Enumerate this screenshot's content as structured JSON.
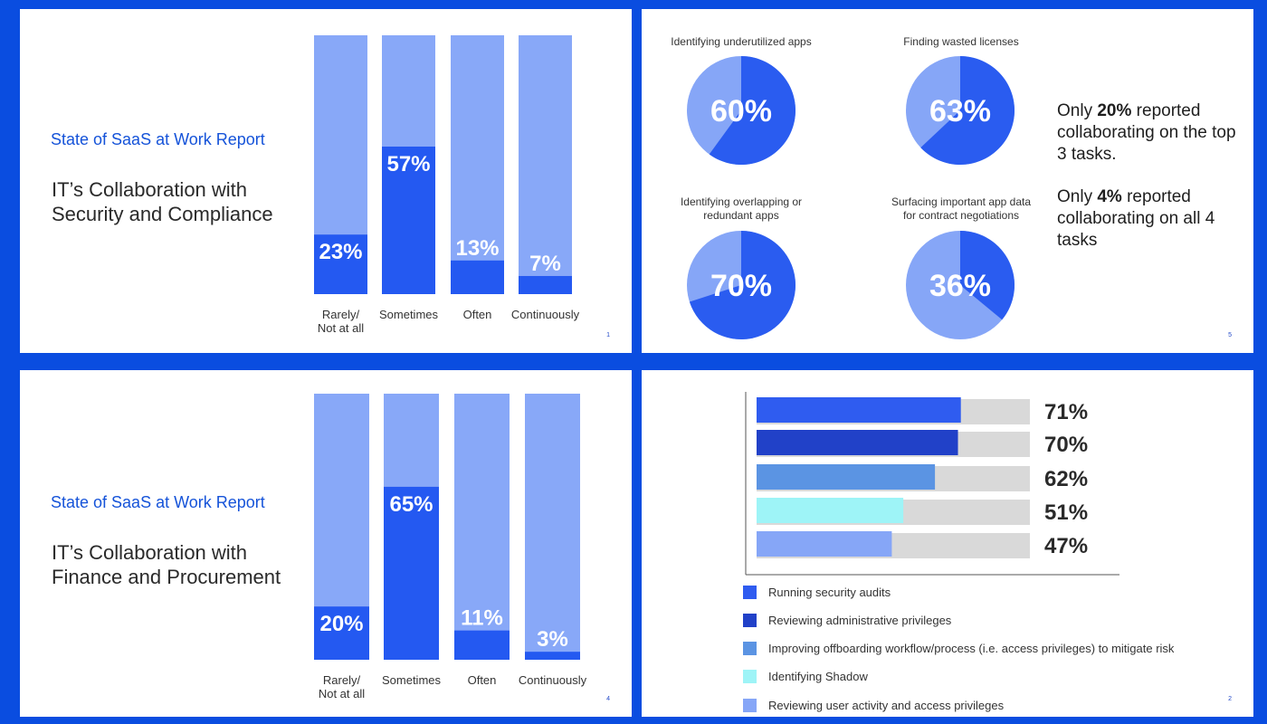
{
  "slides": {
    "security": {
      "subtitle": "State of SaaS at Work Report",
      "title_line1": "IT’s Collaboration with",
      "title_line2": "Security and Compliance",
      "page": "1"
    },
    "tasks": {
      "page": "5",
      "note1_pre": "Only ",
      "note1_bold": "20%",
      "note1_post": " reported collaborating on the top 3 tasks.",
      "note2_pre": "Only ",
      "note2_bold": "4%",
      "note2_post": " reported collaborating on all 4 tasks"
    },
    "finance": {
      "subtitle": "State of SaaS at Work Report",
      "title_line1": "IT’s Collaboration with",
      "title_line2": "Finance and Procurement",
      "page": "4"
    },
    "activities": {
      "page": "2"
    }
  },
  "colors": {
    "bar_dark": "#2459f1",
    "bar_light": "#88a8f8",
    "pie_dark": "#2a5cf0",
    "pie_light": "#86a6f7",
    "track": "#d9d9d9"
  },
  "chart_data": [
    {
      "id": "security",
      "type": "bar",
      "stacked_to": 100,
      "categories": [
        "Rarely/\nNot at all",
        "Sometimes",
        "Often",
        "Continuously"
      ],
      "values": [
        23,
        57,
        13,
        7
      ],
      "labels": [
        "23%",
        "57%",
        "13%",
        "7%"
      ],
      "ylim": [
        0,
        100
      ]
    },
    {
      "id": "tasks",
      "type": "pie",
      "pies": [
        {
          "title": "Identifying underutilized apps",
          "value": 60,
          "label": "60%"
        },
        {
          "title": "Finding wasted licenses",
          "value": 63,
          "label": "63%"
        },
        {
          "title": "Identifying overlapping or\nredundant apps",
          "value": 70,
          "label": "70%"
        },
        {
          "title": "Surfacing important app data\nfor contract negotiations",
          "value": 36,
          "label": "36%"
        }
      ]
    },
    {
      "id": "finance",
      "type": "bar",
      "stacked_to": 100,
      "categories": [
        "Rarely/\nNot at all",
        "Sometimes",
        "Often",
        "Continuously"
      ],
      "values": [
        20,
        65,
        11,
        3
      ],
      "labels": [
        "20%",
        "65%",
        "11%",
        "3%"
      ],
      "ylim": [
        0,
        100
      ]
    },
    {
      "id": "activities",
      "type": "bar",
      "orientation": "horizontal",
      "xlim": [
        0,
        100
      ],
      "series": [
        {
          "name": "Running security audits",
          "value": 71,
          "label": "71%",
          "color": "#2f5cf0"
        },
        {
          "name": "Reviewing administrative privileges",
          "value": 70,
          "label": "70%",
          "color": "#2141c8"
        },
        {
          "name": "Improving offboarding workflow/process (i.e. access privileges) to mitigate risk",
          "value": 62,
          "label": "62%",
          "color": "#5b94e3"
        },
        {
          "name": "Identifying Shadow",
          "value": 51,
          "label": "51%",
          "color": "#9ef4f7"
        },
        {
          "name": "Reviewing user activity and access privileges",
          "value": 47,
          "label": "47%",
          "color": "#86a6f7"
        }
      ]
    }
  ]
}
